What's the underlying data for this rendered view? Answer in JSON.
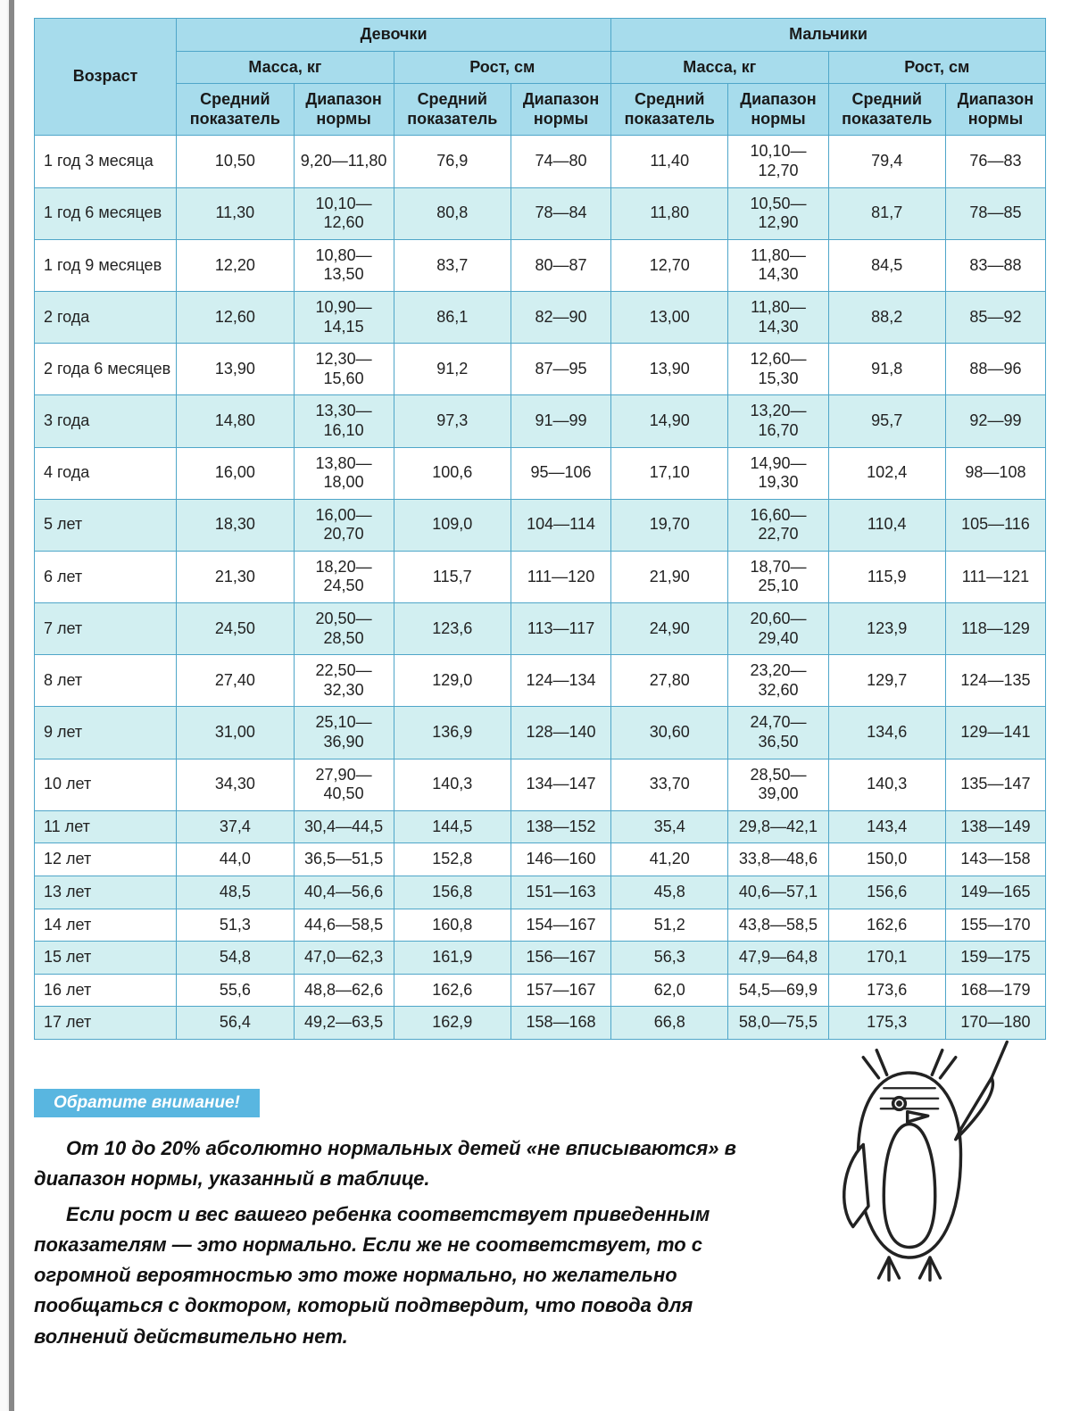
{
  "table": {
    "age_header": "Возраст",
    "groups": [
      {
        "label": "Девочки",
        "mass": "Масса, кг",
        "height": "Рост, см"
      },
      {
        "label": "Мальчики",
        "mass": "Масса, кг",
        "height": "Рост, см"
      }
    ],
    "sub": {
      "avg": "Средний показатель",
      "range": "Диапазон нормы"
    },
    "columns": [
      "age",
      "g_mass_avg",
      "g_mass_range",
      "g_height_avg",
      "g_height_range",
      "b_mass_avg",
      "b_mass_range",
      "b_height_avg",
      "b_height_range"
    ],
    "rows": [
      [
        "1 год 3 месяца",
        "10,50",
        "9,20—11,80",
        "76,9",
        "74—80",
        "11,40",
        "10,10—12,70",
        "79,4",
        "76—83"
      ],
      [
        "1 год 6 месяцев",
        "11,30",
        "10,10—12,60",
        "80,8",
        "78—84",
        "11,80",
        "10,50—12,90",
        "81,7",
        "78—85"
      ],
      [
        "1 год 9 месяцев",
        "12,20",
        "10,80—13,50",
        "83,7",
        "80—87",
        "12,70",
        "11,80—14,30",
        "84,5",
        "83—88"
      ],
      [
        "2 года",
        "12,60",
        "10,90—14,15",
        "86,1",
        "82—90",
        "13,00",
        "11,80—14,30",
        "88,2",
        "85—92"
      ],
      [
        "2 года 6 месяцев",
        "13,90",
        "12,30—15,60",
        "91,2",
        "87—95",
        "13,90",
        "12,60—15,30",
        "91,8",
        "88—96"
      ],
      [
        "3 года",
        "14,80",
        "13,30—16,10",
        "97,3",
        "91—99",
        "14,90",
        "13,20—16,70",
        "95,7",
        "92—99"
      ],
      [
        "4 года",
        "16,00",
        "13,80—18,00",
        "100,6",
        "95—106",
        "17,10",
        "14,90—19,30",
        "102,4",
        "98—108"
      ],
      [
        "5 лет",
        "18,30",
        "16,00—20,70",
        "109,0",
        "104—114",
        "19,70",
        "16,60—22,70",
        "110,4",
        "105—116"
      ],
      [
        "6 лет",
        "21,30",
        "18,20—24,50",
        "115,7",
        "111—120",
        "21,90",
        "18,70—25,10",
        "115,9",
        "111—121"
      ],
      [
        "7 лет",
        "24,50",
        "20,50—28,50",
        "123,6",
        "113—117",
        "24,90",
        "20,60—29,40",
        "123,9",
        "118—129"
      ],
      [
        "8 лет",
        "27,40",
        "22,50—32,30",
        "129,0",
        "124—134",
        "27,80",
        "23,20—32,60",
        "129,7",
        "124—135"
      ],
      [
        "9 лет",
        "31,00",
        "25,10—36,90",
        "136,9",
        "128—140",
        "30,60",
        "24,70—36,50",
        "134,6",
        "129—141"
      ],
      [
        "10 лет",
        "34,30",
        "27,90—40,50",
        "140,3",
        "134—147",
        "33,70",
        "28,50—39,00",
        "140,3",
        "135—147"
      ],
      [
        "11 лет",
        "37,4",
        "30,4—44,5",
        "144,5",
        "138—152",
        "35,4",
        "29,8—42,1",
        "143,4",
        "138—149"
      ],
      [
        "12 лет",
        "44,0",
        "36,5—51,5",
        "152,8",
        "146—160",
        "41,20",
        "33,8—48,6",
        "150,0",
        "143—158"
      ],
      [
        "13 лет",
        "48,5",
        "40,4—56,6",
        "156,8",
        "151—163",
        "45,8",
        "40,6—57,1",
        "156,6",
        "149—165"
      ],
      [
        "14 лет",
        "51,3",
        "44,6—58,5",
        "160,8",
        "154—167",
        "51,2",
        "43,8—58,5",
        "162,6",
        "155—170"
      ],
      [
        "15 лет",
        "54,8",
        "47,0—62,3",
        "161,9",
        "156—167",
        "56,3",
        "47,9—64,8",
        "170,1",
        "159—175"
      ],
      [
        "16 лет",
        "55,6",
        "48,8—62,6",
        "162,6",
        "157—167",
        "62,0",
        "54,5—69,9",
        "173,6",
        "168—179"
      ],
      [
        "17 лет",
        "56,4",
        "49,2—63,5",
        "162,9",
        "158—168",
        "66,8",
        "58,0—75,5",
        "175,3",
        "170—180"
      ]
    ]
  },
  "note": {
    "title": "Обратите внимание!",
    "p1": "От 10 до 20% абсолютно нормальных детей «не вписываются» в диапазон нормы, указанный в таблице.",
    "p2": "Если рост и вес вашего ребенка соответствует приведенным показателям — это нормально. Если же не соответствует, то с огромной вероятностью это тоже нормально, но желательно пообщаться с доктором, который подтвердит, что повода для волнений действительно нет."
  },
  "style": {
    "header_bg": "#a7dcec",
    "border_color": "#4fa6c9",
    "row_alt_bg": "#d2eff1",
    "row_bg": "#ffffff",
    "note_bar_bg": "#59b6e0",
    "text_color": "#222222",
    "base_fontsize": 18,
    "note_fontsize": 22
  }
}
